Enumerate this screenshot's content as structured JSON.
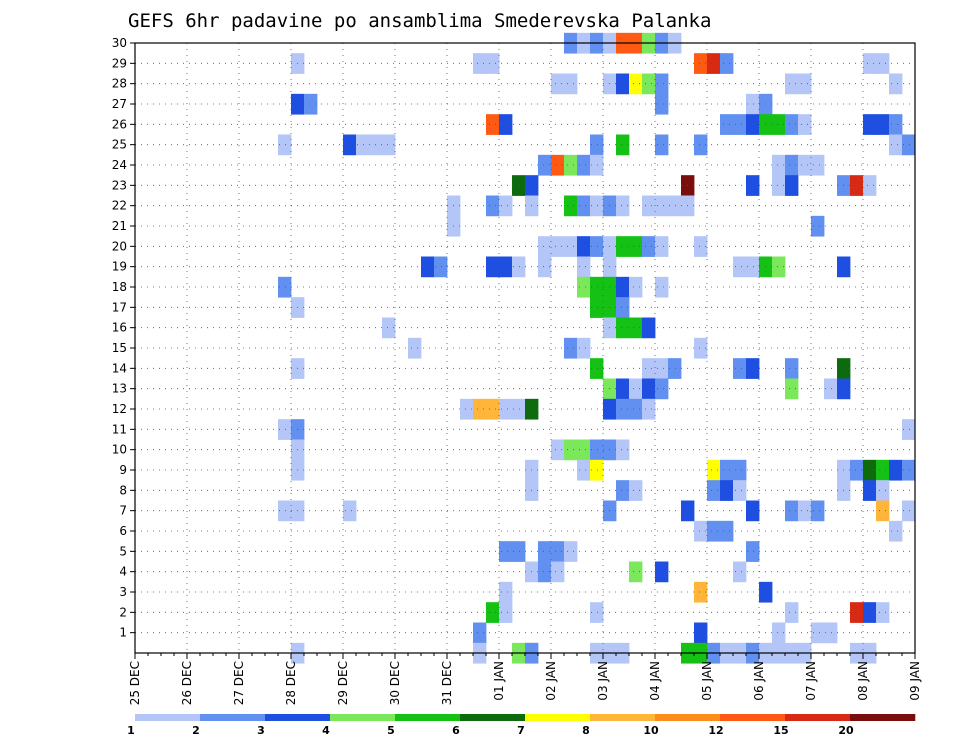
{
  "chart_data": {
    "type": "heatmap",
    "title": "GEFS 6hr padavine po ansamblima Smederevska Palanka",
    "xlabel": "",
    "ylabel": "",
    "x_tick_labels": [
      "25 DEC",
      "26 DEC",
      "27 DEC",
      "28 DEC",
      "29 DEC",
      "30 DEC",
      "31 DEC",
      "01 JAN",
      "02 JAN",
      "03 JAN",
      "04 JAN",
      "05 JAN",
      "06 JAN",
      "07 JAN",
      "08 JAN",
      "09 JAN"
    ],
    "y_tick_labels": [
      "1",
      "2",
      "3",
      "4",
      "5",
      "6",
      "7",
      "8",
      "9",
      "10",
      "11",
      "12",
      "13",
      "14",
      "15",
      "16",
      "17",
      "18",
      "19",
      "20",
      "21",
      "22",
      "23",
      "24",
      "25",
      "26",
      "27",
      "28",
      "29",
      "30"
    ],
    "x_unit": "6-hour step",
    "steps_per_day": 4,
    "xlim": [
      0,
      60
    ],
    "ylim": [
      0,
      30
    ],
    "grid": true,
    "legend_position": "bottom",
    "legend": {
      "labels": [
        "1",
        "2",
        "3",
        "4",
        "5",
        "6",
        "7",
        "8",
        "10",
        "12",
        "15",
        "20"
      ],
      "colors": [
        "#b3c6f7",
        "#6190f0",
        "#1f4fe0",
        "#7ae85a",
        "#16c116",
        "#0d6a0d",
        "#ffff00",
        "#ffb43a",
        "#ff8c1a",
        "#ff5a14",
        "#d62a14",
        "#7a0d0d"
      ]
    },
    "cells": [
      {
        "m": 30,
        "x": 34,
        "c": 2
      },
      {
        "m": 30,
        "x": 35,
        "c": 1
      },
      {
        "m": 30,
        "x": 36,
        "c": 2
      },
      {
        "m": 30,
        "x": 37,
        "c": 1
      },
      {
        "m": 30,
        "x": 38,
        "c": 10
      },
      {
        "m": 30,
        "x": 39,
        "c": 10
      },
      {
        "m": 30,
        "x": 40,
        "c": 4
      },
      {
        "m": 30,
        "x": 41,
        "c": 2
      },
      {
        "m": 30,
        "x": 42,
        "c": 1
      },
      {
        "m": 29,
        "x": 13,
        "c": 1
      },
      {
        "m": 29,
        "x": 27,
        "c": 1
      },
      {
        "m": 29,
        "x": 28,
        "c": 1
      },
      {
        "m": 29,
        "x": 44,
        "c": 10
      },
      {
        "m": 29,
        "x": 45,
        "c": 11
      },
      {
        "m": 29,
        "x": 46,
        "c": 2
      },
      {
        "m": 29,
        "x": 57,
        "c": 1
      },
      {
        "m": 29,
        "x": 58,
        "c": 1
      },
      {
        "m": 28,
        "x": 33,
        "c": 1
      },
      {
        "m": 28,
        "x": 34,
        "c": 1
      },
      {
        "m": 28,
        "x": 37,
        "c": 1
      },
      {
        "m": 28,
        "x": 38,
        "c": 3
      },
      {
        "m": 28,
        "x": 39,
        "c": 7
      },
      {
        "m": 28,
        "x": 40,
        "c": 4
      },
      {
        "m": 28,
        "x": 41,
        "c": 2
      },
      {
        "m": 28,
        "x": 51,
        "c": 1
      },
      {
        "m": 28,
        "x": 52,
        "c": 1
      },
      {
        "m": 28,
        "x": 59,
        "c": 1
      },
      {
        "m": 27,
        "x": 13,
        "c": 3
      },
      {
        "m": 27,
        "x": 14,
        "c": 2
      },
      {
        "m": 27,
        "x": 41,
        "c": 2
      },
      {
        "m": 27,
        "x": 48,
        "c": 1
      },
      {
        "m": 27,
        "x": 49,
        "c": 2
      },
      {
        "m": 26,
        "x": 28,
        "c": 10
      },
      {
        "m": 26,
        "x": 29,
        "c": 3
      },
      {
        "m": 26,
        "x": 46,
        "c": 2
      },
      {
        "m": 26,
        "x": 47,
        "c": 2
      },
      {
        "m": 26,
        "x": 48,
        "c": 3
      },
      {
        "m": 26,
        "x": 49,
        "c": 5
      },
      {
        "m": 26,
        "x": 50,
        "c": 5
      },
      {
        "m": 26,
        "x": 51,
        "c": 2
      },
      {
        "m": 26,
        "x": 52,
        "c": 1
      },
      {
        "m": 26,
        "x": 57,
        "c": 3
      },
      {
        "m": 26,
        "x": 58,
        "c": 3
      },
      {
        "m": 26,
        "x": 59,
        "c": 2
      },
      {
        "m": 25,
        "x": 12,
        "c": 1
      },
      {
        "m": 25,
        "x": 17,
        "c": 3
      },
      {
        "m": 25,
        "x": 18,
        "c": 1
      },
      {
        "m": 25,
        "x": 19,
        "c": 1
      },
      {
        "m": 25,
        "x": 20,
        "c": 1
      },
      {
        "m": 25,
        "x": 36,
        "c": 2
      },
      {
        "m": 25,
        "x": 38,
        "c": 5
      },
      {
        "m": 25,
        "x": 41,
        "c": 2
      },
      {
        "m": 25,
        "x": 44,
        "c": 2
      },
      {
        "m": 25,
        "x": 59,
        "c": 1
      },
      {
        "m": 25,
        "x": 60,
        "c": 2
      },
      {
        "m": 24,
        "x": 32,
        "c": 2
      },
      {
        "m": 24,
        "x": 33,
        "c": 10
      },
      {
        "m": 24,
        "x": 34,
        "c": 4
      },
      {
        "m": 24,
        "x": 35,
        "c": 2
      },
      {
        "m": 24,
        "x": 36,
        "c": 1
      },
      {
        "m": 24,
        "x": 50,
        "c": 1
      },
      {
        "m": 24,
        "x": 51,
        "c": 2
      },
      {
        "m": 24,
        "x": 52,
        "c": 1
      },
      {
        "m": 24,
        "x": 53,
        "c": 1
      },
      {
        "m": 23,
        "x": 30,
        "c": 6
      },
      {
        "m": 23,
        "x": 31,
        "c": 3
      },
      {
        "m": 23,
        "x": 43,
        "c": 12
      },
      {
        "m": 23,
        "x": 48,
        "c": 3
      },
      {
        "m": 23,
        "x": 50,
        "c": 1
      },
      {
        "m": 23,
        "x": 51,
        "c": 3
      },
      {
        "m": 23,
        "x": 55,
        "c": 2
      },
      {
        "m": 23,
        "x": 56,
        "c": 11
      },
      {
        "m": 23,
        "x": 57,
        "c": 1
      },
      {
        "m": 22,
        "x": 25,
        "c": 1
      },
      {
        "m": 22,
        "x": 28,
        "c": 2
      },
      {
        "m": 22,
        "x": 29,
        "c": 1
      },
      {
        "m": 22,
        "x": 31,
        "c": 1
      },
      {
        "m": 22,
        "x": 34,
        "c": 5
      },
      {
        "m": 22,
        "x": 35,
        "c": 2
      },
      {
        "m": 22,
        "x": 36,
        "c": 1
      },
      {
        "m": 22,
        "x": 37,
        "c": 2
      },
      {
        "m": 22,
        "x": 38,
        "c": 1
      },
      {
        "m": 22,
        "x": 40,
        "c": 1
      },
      {
        "m": 22,
        "x": 41,
        "c": 1
      },
      {
        "m": 22,
        "x": 42,
        "c": 1
      },
      {
        "m": 22,
        "x": 43,
        "c": 1
      },
      {
        "m": 21,
        "x": 25,
        "c": 1
      },
      {
        "m": 21,
        "x": 53,
        "c": 2
      },
      {
        "m": 20,
        "x": 32,
        "c": 1
      },
      {
        "m": 20,
        "x": 33,
        "c": 1
      },
      {
        "m": 20,
        "x": 34,
        "c": 1
      },
      {
        "m": 20,
        "x": 35,
        "c": 3
      },
      {
        "m": 20,
        "x": 36,
        "c": 2
      },
      {
        "m": 20,
        "x": 37,
        "c": 1
      },
      {
        "m": 20,
        "x": 38,
        "c": 5
      },
      {
        "m": 20,
        "x": 39,
        "c": 5
      },
      {
        "m": 20,
        "x": 40,
        "c": 2
      },
      {
        "m": 20,
        "x": 41,
        "c": 1
      },
      {
        "m": 20,
        "x": 44,
        "c": 1
      },
      {
        "m": 19,
        "x": 23,
        "c": 3
      },
      {
        "m": 19,
        "x": 24,
        "c": 2
      },
      {
        "m": 19,
        "x": 28,
        "c": 3
      },
      {
        "m": 19,
        "x": 29,
        "c": 3
      },
      {
        "m": 19,
        "x": 30,
        "c": 1
      },
      {
        "m": 19,
        "x": 32,
        "c": 1
      },
      {
        "m": 19,
        "x": 35,
        "c": 1
      },
      {
        "m": 19,
        "x": 37,
        "c": 1
      },
      {
        "m": 19,
        "x": 47,
        "c": 1
      },
      {
        "m": 19,
        "x": 48,
        "c": 1
      },
      {
        "m": 19,
        "x": 49,
        "c": 5
      },
      {
        "m": 19,
        "x": 50,
        "c": 4
      },
      {
        "m": 19,
        "x": 55,
        "c": 3
      },
      {
        "m": 18,
        "x": 12,
        "c": 2
      },
      {
        "m": 18,
        "x": 35,
        "c": 4
      },
      {
        "m": 18,
        "x": 36,
        "c": 5
      },
      {
        "m": 18,
        "x": 37,
        "c": 5
      },
      {
        "m": 18,
        "x": 38,
        "c": 3
      },
      {
        "m": 18,
        "x": 39,
        "c": 1
      },
      {
        "m": 18,
        "x": 41,
        "c": 1
      },
      {
        "m": 17,
        "x": 13,
        "c": 1
      },
      {
        "m": 17,
        "x": 36,
        "c": 5
      },
      {
        "m": 17,
        "x": 37,
        "c": 5
      },
      {
        "m": 17,
        "x": 38,
        "c": 2
      },
      {
        "m": 16,
        "x": 20,
        "c": 1
      },
      {
        "m": 16,
        "x": 37,
        "c": 1
      },
      {
        "m": 16,
        "x": 38,
        "c": 5
      },
      {
        "m": 16,
        "x": 39,
        "c": 5
      },
      {
        "m": 16,
        "x": 40,
        "c": 3
      },
      {
        "m": 15,
        "x": 22,
        "c": 1
      },
      {
        "m": 15,
        "x": 34,
        "c": 2
      },
      {
        "m": 15,
        "x": 35,
        "c": 1
      },
      {
        "m": 15,
        "x": 44,
        "c": 1
      },
      {
        "m": 14,
        "x": 13,
        "c": 1
      },
      {
        "m": 14,
        "x": 36,
        "c": 5
      },
      {
        "m": 14,
        "x": 40,
        "c": 1
      },
      {
        "m": 14,
        "x": 41,
        "c": 1
      },
      {
        "m": 14,
        "x": 42,
        "c": 2
      },
      {
        "m": 14,
        "x": 47,
        "c": 2
      },
      {
        "m": 14,
        "x": 48,
        "c": 3
      },
      {
        "m": 14,
        "x": 51,
        "c": 2
      },
      {
        "m": 14,
        "x": 55,
        "c": 6
      },
      {
        "m": 13,
        "x": 37,
        "c": 4
      },
      {
        "m": 13,
        "x": 38,
        "c": 3
      },
      {
        "m": 13,
        "x": 39,
        "c": 1
      },
      {
        "m": 13,
        "x": 40,
        "c": 3
      },
      {
        "m": 13,
        "x": 41,
        "c": 2
      },
      {
        "m": 13,
        "x": 51,
        "c": 4
      },
      {
        "m": 13,
        "x": 54,
        "c": 1
      },
      {
        "m": 13,
        "x": 55,
        "c": 3
      },
      {
        "m": 12,
        "x": 26,
        "c": 1
      },
      {
        "m": 12,
        "x": 27,
        "c": 8
      },
      {
        "m": 12,
        "x": 28,
        "c": 8
      },
      {
        "m": 12,
        "x": 29,
        "c": 1
      },
      {
        "m": 12,
        "x": 30,
        "c": 1
      },
      {
        "m": 12,
        "x": 31,
        "c": 6
      },
      {
        "m": 12,
        "x": 37,
        "c": 3
      },
      {
        "m": 12,
        "x": 38,
        "c": 2
      },
      {
        "m": 12,
        "x": 39,
        "c": 2
      },
      {
        "m": 12,
        "x": 40,
        "c": 1
      },
      {
        "m": 11,
        "x": 12,
        "c": 1
      },
      {
        "m": 11,
        "x": 13,
        "c": 2
      },
      {
        "m": 11,
        "x": 60,
        "c": 1
      },
      {
        "m": 10,
        "x": 13,
        "c": 1
      },
      {
        "m": 10,
        "x": 33,
        "c": 1
      },
      {
        "m": 10,
        "x": 34,
        "c": 4
      },
      {
        "m": 10,
        "x": 35,
        "c": 4
      },
      {
        "m": 10,
        "x": 36,
        "c": 2
      },
      {
        "m": 10,
        "x": 37,
        "c": 2
      },
      {
        "m": 10,
        "x": 38,
        "c": 1
      },
      {
        "m": 9,
        "x": 13,
        "c": 1
      },
      {
        "m": 9,
        "x": 31,
        "c": 1
      },
      {
        "m": 9,
        "x": 35,
        "c": 1
      },
      {
        "m": 9,
        "x": 36,
        "c": 7
      },
      {
        "m": 9,
        "x": 45,
        "c": 7
      },
      {
        "m": 9,
        "x": 46,
        "c": 2
      },
      {
        "m": 9,
        "x": 47,
        "c": 2
      },
      {
        "m": 9,
        "x": 55,
        "c": 1
      },
      {
        "m": 9,
        "x": 56,
        "c": 2
      },
      {
        "m": 9,
        "x": 57,
        "c": 6
      },
      {
        "m": 9,
        "x": 58,
        "c": 5
      },
      {
        "m": 9,
        "x": 59,
        "c": 3
      },
      {
        "m": 9,
        "x": 60,
        "c": 2
      },
      {
        "m": 8,
        "x": 31,
        "c": 1
      },
      {
        "m": 8,
        "x": 38,
        "c": 2
      },
      {
        "m": 8,
        "x": 39,
        "c": 1
      },
      {
        "m": 8,
        "x": 45,
        "c": 2
      },
      {
        "m": 8,
        "x": 46,
        "c": 3
      },
      {
        "m": 8,
        "x": 47,
        "c": 1
      },
      {
        "m": 8,
        "x": 55,
        "c": 1
      },
      {
        "m": 8,
        "x": 57,
        "c": 3
      },
      {
        "m": 8,
        "x": 58,
        "c": 1
      },
      {
        "m": 7,
        "x": 12,
        "c": 1
      },
      {
        "m": 7,
        "x": 13,
        "c": 1
      },
      {
        "m": 7,
        "x": 17,
        "c": 1
      },
      {
        "m": 7,
        "x": 37,
        "c": 2
      },
      {
        "m": 7,
        "x": 43,
        "c": 3
      },
      {
        "m": 7,
        "x": 48,
        "c": 3
      },
      {
        "m": 7,
        "x": 51,
        "c": 2
      },
      {
        "m": 7,
        "x": 52,
        "c": 1
      },
      {
        "m": 7,
        "x": 53,
        "c": 2
      },
      {
        "m": 7,
        "x": 58,
        "c": 8
      },
      {
        "m": 7,
        "x": 60,
        "c": 1
      },
      {
        "m": 6,
        "x": 44,
        "c": 1
      },
      {
        "m": 6,
        "x": 45,
        "c": 2
      },
      {
        "m": 6,
        "x": 46,
        "c": 2
      },
      {
        "m": 6,
        "x": 59,
        "c": 1
      },
      {
        "m": 5,
        "x": 29,
        "c": 2
      },
      {
        "m": 5,
        "x": 30,
        "c": 2
      },
      {
        "m": 5,
        "x": 32,
        "c": 2
      },
      {
        "m": 5,
        "x": 33,
        "c": 2
      },
      {
        "m": 5,
        "x": 34,
        "c": 1
      },
      {
        "m": 5,
        "x": 48,
        "c": 2
      },
      {
        "m": 4,
        "x": 31,
        "c": 1
      },
      {
        "m": 4,
        "x": 32,
        "c": 2
      },
      {
        "m": 4,
        "x": 33,
        "c": 1
      },
      {
        "m": 4,
        "x": 39,
        "c": 4
      },
      {
        "m": 4,
        "x": 41,
        "c": 3
      },
      {
        "m": 4,
        "x": 47,
        "c": 1
      },
      {
        "m": 3,
        "x": 29,
        "c": 1
      },
      {
        "m": 3,
        "x": 44,
        "c": 8
      },
      {
        "m": 3,
        "x": 49,
        "c": 3
      },
      {
        "m": 2,
        "x": 28,
        "c": 5
      },
      {
        "m": 2,
        "x": 29,
        "c": 1
      },
      {
        "m": 2,
        "x": 36,
        "c": 1
      },
      {
        "m": 2,
        "x": 51,
        "c": 1
      },
      {
        "m": 2,
        "x": 56,
        "c": 11
      },
      {
        "m": 2,
        "x": 57,
        "c": 3
      },
      {
        "m": 2,
        "x": 58,
        "c": 1
      },
      {
        "m": 1,
        "x": 27,
        "c": 2
      },
      {
        "m": 1,
        "x": 44,
        "c": 3
      },
      {
        "m": 1,
        "x": 50,
        "c": 1
      },
      {
        "m": 1,
        "x": 53,
        "c": 1
      },
      {
        "m": 1,
        "x": 54,
        "c": 1
      },
      {
        "m": 0,
        "x": 13,
        "c": 1
      },
      {
        "m": 0,
        "x": 27,
        "c": 1
      },
      {
        "m": 0,
        "x": 30,
        "c": 4
      },
      {
        "m": 0,
        "x": 31,
        "c": 2
      },
      {
        "m": 0,
        "x": 36,
        "c": 1
      },
      {
        "m": 0,
        "x": 37,
        "c": 1
      },
      {
        "m": 0,
        "x": 38,
        "c": 1
      },
      {
        "m": 0,
        "x": 43,
        "c": 5
      },
      {
        "m": 0,
        "x": 44,
        "c": 5
      },
      {
        "m": 0,
        "x": 45,
        "c": 2
      },
      {
        "m": 0,
        "x": 46,
        "c": 1
      },
      {
        "m": 0,
        "x": 47,
        "c": 1
      },
      {
        "m": 0,
        "x": 48,
        "c": 2
      },
      {
        "m": 0,
        "x": 49,
        "c": 1
      },
      {
        "m": 0,
        "x": 50,
        "c": 1
      },
      {
        "m": 0,
        "x": 51,
        "c": 1
      },
      {
        "m": 0,
        "x": 52,
        "c": 1
      },
      {
        "m": 0,
        "x": 56,
        "c": 1
      },
      {
        "m": 0,
        "x": 57,
        "c": 1
      }
    ]
  }
}
